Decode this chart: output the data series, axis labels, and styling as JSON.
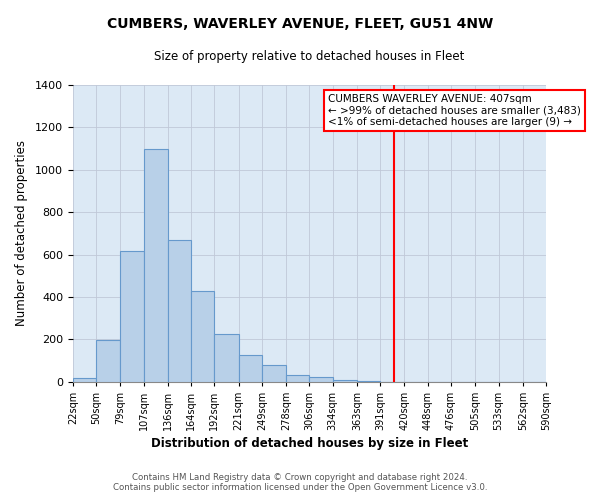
{
  "title": "CUMBERS, WAVERLEY AVENUE, FLEET, GU51 4NW",
  "subtitle": "Size of property relative to detached houses in Fleet",
  "xlabel": "Distribution of detached houses by size in Fleet",
  "ylabel": "Number of detached properties",
  "footer_line1": "Contains HM Land Registry data © Crown copyright and database right 2024.",
  "footer_line2": "Contains public sector information licensed under the Open Government Licence v3.0.",
  "bin_labels": [
    "22sqm",
    "50sqm",
    "79sqm",
    "107sqm",
    "136sqm",
    "164sqm",
    "192sqm",
    "221sqm",
    "249sqm",
    "278sqm",
    "306sqm",
    "334sqm",
    "363sqm",
    "391sqm",
    "420sqm",
    "448sqm",
    "476sqm",
    "505sqm",
    "533sqm",
    "562sqm",
    "590sqm"
  ],
  "bar_values": [
    15,
    195,
    615,
    1100,
    670,
    430,
    225,
    125,
    80,
    30,
    20,
    10,
    5,
    0,
    0,
    0,
    0,
    0,
    0,
    0
  ],
  "bar_color": "#b8d0e8",
  "bar_edge_color": "#6699cc",
  "background_color": "#dce9f5",
  "grid_color": "#c0c8d8",
  "vline_x_bin": 13,
  "vline_color": "red",
  "ylim": [
    0,
    1400
  ],
  "annotation_title": "CUMBERS WAVERLEY AVENUE: 407sqm",
  "annotation_line1": "← >99% of detached houses are smaller (3,483)",
  "annotation_line2": "<1% of semi-detached houses are larger (9) →",
  "bin_edges": [
    22,
    50,
    79,
    107,
    136,
    164,
    192,
    221,
    249,
    278,
    306,
    334,
    363,
    391,
    420,
    448,
    476,
    505,
    533,
    562,
    590
  ],
  "yticks": [
    0,
    200,
    400,
    600,
    800,
    1000,
    1200,
    1400
  ]
}
